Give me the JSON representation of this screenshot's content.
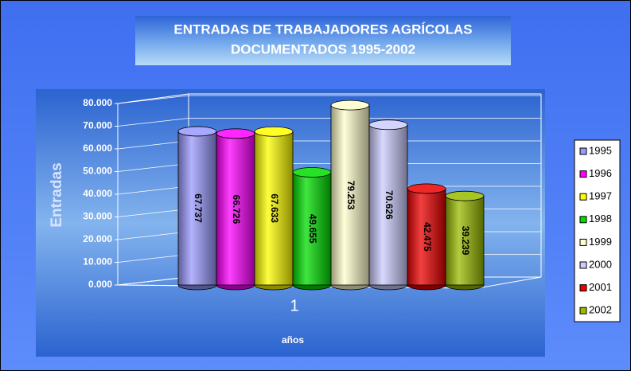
{
  "chart_data": {
    "type": "bar3d",
    "title": [
      "ENTRADAS DE TRABAJADORES AGRÍCOLAS",
      "DOCUMENTADOS 1995-2002"
    ],
    "y_label": "Entradas",
    "x_label": "años",
    "categories": [
      "1"
    ],
    "series": [
      {
        "name": "1995",
        "color": "#9999ff",
        "values": [
          67737
        ],
        "value_labels": [
          "67.737"
        ]
      },
      {
        "name": "1996",
        "color": "#ff00ff",
        "values": [
          66726
        ],
        "value_labels": [
          "66.726"
        ]
      },
      {
        "name": "1997",
        "color": "#ffff00",
        "values": [
          67633
        ],
        "value_labels": [
          "67.633"
        ]
      },
      {
        "name": "1998",
        "color": "#00dd00",
        "values": [
          49655
        ],
        "value_labels": [
          "49.655"
        ]
      },
      {
        "name": "1999",
        "color": "#ffffcc",
        "values": [
          79253
        ],
        "value_labels": [
          "79.253"
        ]
      },
      {
        "name": "2000",
        "color": "#ccccff",
        "values": [
          70626
        ],
        "value_labels": [
          "70.626"
        ]
      },
      {
        "name": "2001",
        "color": "#ee0000",
        "values": [
          42475
        ],
        "value_labels": [
          "42.475"
        ]
      },
      {
        "name": "2002",
        "color": "#99bb00",
        "values": [
          39239
        ],
        "value_labels": [
          "39.239"
        ]
      }
    ],
    "ylim": [
      0,
      80000
    ],
    "yticks": [
      {
        "value": 0,
        "label": "0.000"
      },
      {
        "value": 10000,
        "label": "10.000"
      },
      {
        "value": 20000,
        "label": "20.000"
      },
      {
        "value": 30000,
        "label": "30.000"
      },
      {
        "value": 40000,
        "label": "40.000"
      },
      {
        "value": 50000,
        "label": "50.000"
      },
      {
        "value": 60000,
        "label": "60.000"
      },
      {
        "value": 70000,
        "label": "70.000"
      },
      {
        "value": 80000,
        "label": "80.000"
      }
    ],
    "grid": true,
    "legend": "right"
  }
}
